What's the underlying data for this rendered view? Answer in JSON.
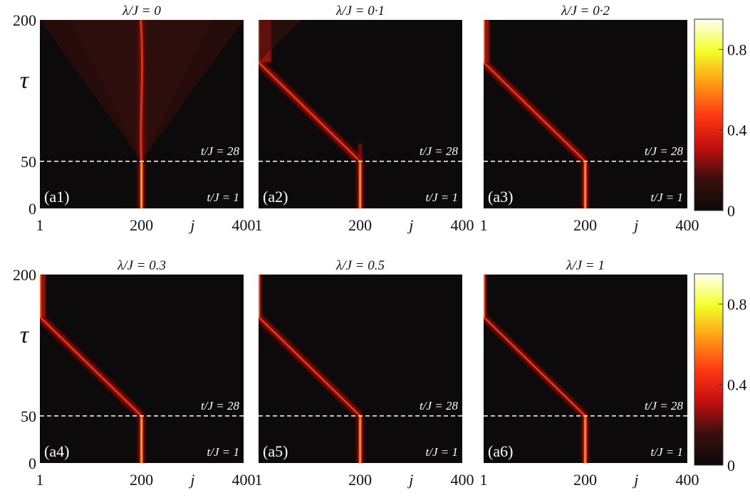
{
  "chart_data": {
    "type": "heatmap",
    "layout": "2x3 panels",
    "x_axis": {
      "label": "j",
      "ticks": [
        1,
        200,
        400
      ],
      "range": [
        1,
        400
      ]
    },
    "y_axis": {
      "label": "τ",
      "ticks": [
        0,
        50,
        200
      ],
      "range": [
        0,
        200
      ]
    },
    "colorbar": {
      "range": [
        0,
        0.95
      ],
      "ticks": [
        0,
        0.4,
        0.8
      ],
      "colormap": "hot",
      "stops": [
        "#0c0a0a",
        "#3a0f0d",
        "#c40f0f",
        "#ff3a14",
        "#ff9b14",
        "#f2ff2a",
        "#fffff2"
      ]
    },
    "reference_line": {
      "tau": 50,
      "style": "dashed",
      "color": "#ffffff",
      "label_above": "t/J = 28",
      "label_below": "t/J = 1"
    },
    "panels": [
      {
        "id": "(a1)",
        "title": "λ/J = 0",
        "lambda": 0,
        "center_j": 200,
        "edge_tau": null,
        "behavior": "stays localized at j = 200; faint light cone spreading after τ = 50"
      },
      {
        "id": "(a2)",
        "title": "λ/J = 0·1",
        "lambda": 0.1,
        "center_j": 200,
        "edge_tau": 155,
        "behavior": "moves from j = 200 to j = 1 after τ = 50, then accumulates at the edge"
      },
      {
        "id": "(a3)",
        "title": "λ/J = 0·2",
        "lambda": 0.2,
        "center_j": 200,
        "edge_tau": 155,
        "behavior": "moves from j = 200 to j = 1 after τ = 50"
      },
      {
        "id": "(a4)",
        "title": "λ/J = 0.3",
        "lambda": 0.3,
        "center_j": 200,
        "edge_tau": 155,
        "behavior": "moves from j = 200 to j = 1 after τ = 50"
      },
      {
        "id": "(a5)",
        "title": "λ/J = 0.5",
        "lambda": 0.5,
        "center_j": 200,
        "edge_tau": 155,
        "behavior": "moves from j = 200 to j = 1 after τ = 50"
      },
      {
        "id": "(a6)",
        "title": "λ/J = 1",
        "lambda": 1,
        "center_j": 200,
        "edge_tau": 155,
        "behavior": "moves from j = 200 to j = 1 after τ = 50"
      }
    ]
  }
}
